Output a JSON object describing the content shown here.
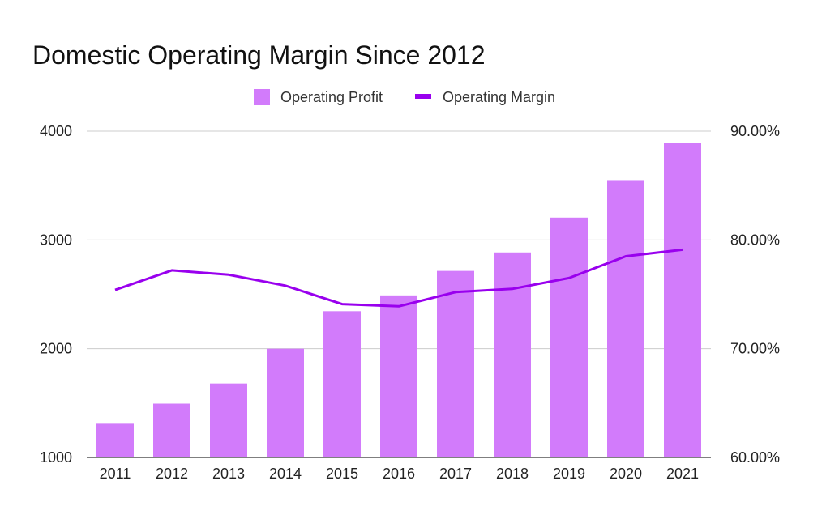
{
  "chart_data": {
    "type": "bar",
    "title": "Domestic Operating Margin Since 2012",
    "categories": [
      "2011",
      "2012",
      "2013",
      "2014",
      "2015",
      "2016",
      "2017",
      "2018",
      "2019",
      "2020",
      "2021"
    ],
    "series": [
      {
        "name": "Operating Profit",
        "type": "bar",
        "axis": "left",
        "values": [
          1310,
          1495,
          1680,
          2000,
          2345,
          2490,
          2715,
          2885,
          3205,
          3550,
          3890
        ]
      },
      {
        "name": "Operating Margin",
        "type": "line",
        "axis": "right",
        "values": [
          75.4,
          77.2,
          76.8,
          75.8,
          74.1,
          73.9,
          75.2,
          75.5,
          76.5,
          78.5,
          79.1
        ]
      }
    ],
    "ylim_left": [
      1000,
      4000
    ],
    "yticks_left": [
      "1000",
      "2000",
      "3000",
      "4000"
    ],
    "ylim_right": [
      60,
      90
    ],
    "yticks_right": [
      "60.00%",
      "70.00%",
      "80.00%",
      "90.00%"
    ],
    "grid": true,
    "legend_position": "top",
    "colors": {
      "bar": "#d27bfb",
      "line": "#9900ee",
      "grid": "#cccccc",
      "baseline": "#333333"
    }
  }
}
